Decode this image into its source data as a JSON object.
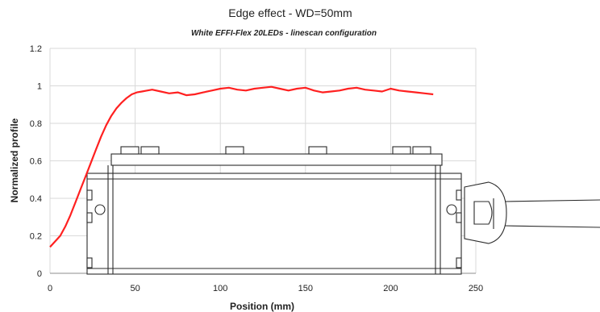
{
  "chart_data": {
    "type": "line",
    "title": "Edge effect - WD=50mm",
    "subtitle": "White EFFI-Flex 20LEDs - linescan configuration",
    "xlabel": "Position (mm)",
    "ylabel": "Normalized profile",
    "xlim": [
      0,
      250
    ],
    "ylim": [
      0,
      1.2
    ],
    "xticks": [
      "0",
      "50",
      "100",
      "150",
      "200",
      "250"
    ],
    "yticks": [
      "0",
      "0.2",
      "0.4",
      "0.6",
      "0.8",
      "1",
      "1.2"
    ],
    "grid": true,
    "line_color": "#ff2020",
    "series": [
      {
        "x": [
          0,
          3,
          6,
          9,
          12,
          15,
          18,
          21,
          24,
          27,
          30,
          33,
          36,
          39,
          42,
          45,
          48,
          51,
          54,
          57,
          60,
          65,
          70,
          75,
          80,
          85,
          90,
          95,
          100,
          105,
          110,
          115,
          120,
          125,
          130,
          135,
          140,
          145,
          150,
          155,
          160,
          165,
          170,
          175,
          180,
          185,
          190,
          195,
          200,
          205,
          210,
          215,
          220,
          225
        ],
        "y": [
          0.14,
          0.17,
          0.2,
          0.25,
          0.31,
          0.38,
          0.45,
          0.52,
          0.59,
          0.66,
          0.73,
          0.79,
          0.84,
          0.88,
          0.91,
          0.935,
          0.955,
          0.965,
          0.97,
          0.975,
          0.98,
          0.97,
          0.96,
          0.965,
          0.95,
          0.955,
          0.965,
          0.975,
          0.985,
          0.99,
          0.98,
          0.975,
          0.985,
          0.99,
          0.995,
          0.985,
          0.975,
          0.985,
          0.99,
          0.975,
          0.965,
          0.97,
          0.975,
          0.985,
          0.99,
          0.98,
          0.975,
          0.97,
          0.985,
          0.975,
          0.97,
          0.965,
          0.96,
          0.955
        ]
      }
    ]
  }
}
